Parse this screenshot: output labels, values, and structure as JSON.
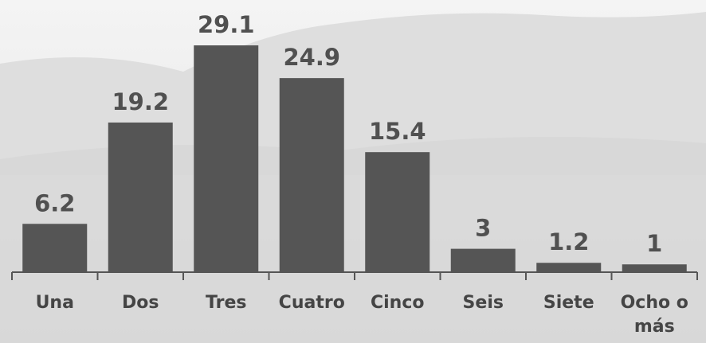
{
  "chart_data": {
    "type": "bar",
    "categories": [
      "Una",
      "Dos",
      "Tres",
      "Cuatro",
      "Cinco",
      "Seis",
      "Siete",
      "Ocho o más"
    ],
    "values": [
      6.2,
      19.2,
      29.1,
      24.9,
      15.4,
      3,
      1.2,
      1
    ],
    "color": "#555555"
  }
}
